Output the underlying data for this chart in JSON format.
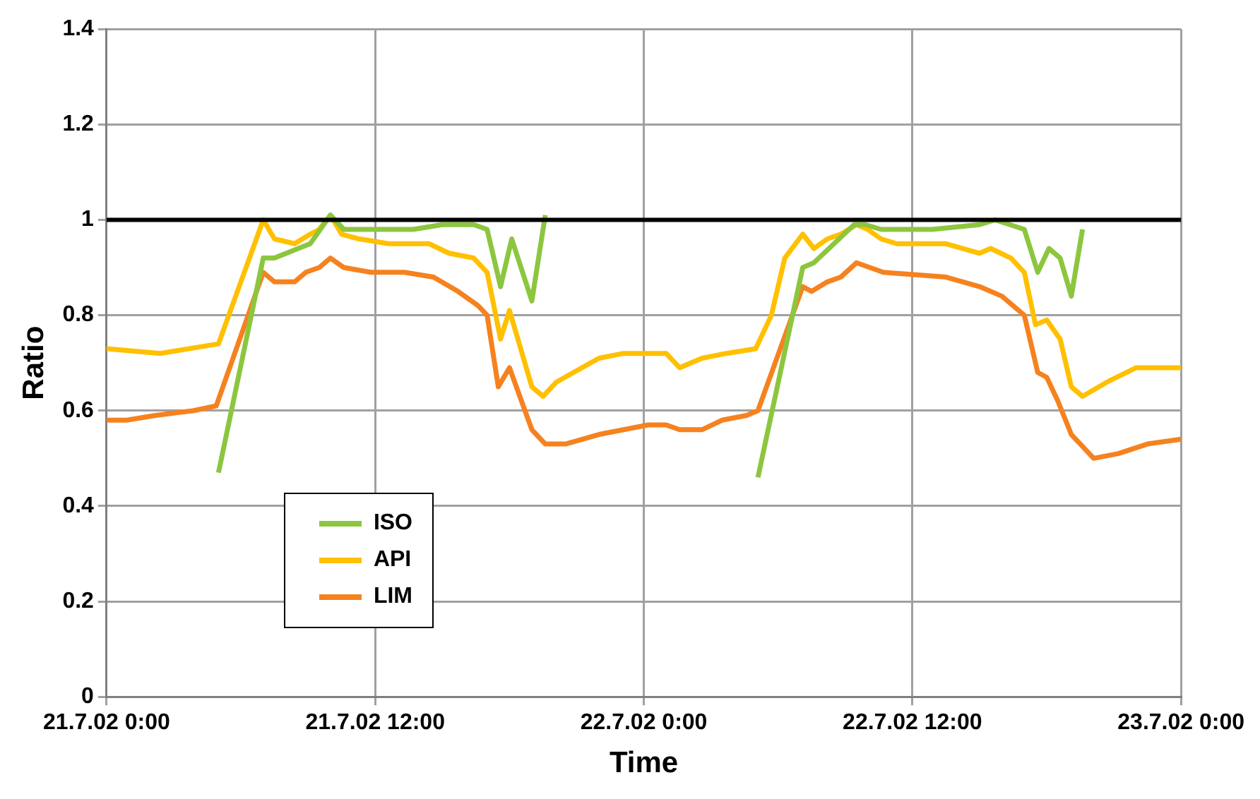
{
  "chart_data": {
    "type": "line",
    "xlabel": "Time",
    "ylabel": "Ratio",
    "xlim": [
      "--07-21T00:00",
      "--07-23T00:00"
    ],
    "xticks": [
      {
        "value": "--07-21T00:00",
        "label": "21.7.02 0:00"
      },
      {
        "value": "--07-21T12:00",
        "label": "21.7.02 12:00"
      },
      {
        "value": "--07-22T00:00",
        "label": "22.7.02 0:00"
      },
      {
        "value": "--07-22T12:00",
        "label": "22.7.02 12:00"
      },
      {
        "value": "--07-23T00:00",
        "label": "23.7.02 0:00"
      }
    ],
    "ylim": [
      0,
      1.4
    ],
    "yticks": [
      0,
      0.2,
      0.4,
      0.6,
      0.8,
      1,
      1.2,
      1.4
    ],
    "grid": true,
    "legend": "bottom left",
    "marker": "none",
    "line_style": "solid",
    "ref_lines": [
      {
        "axis": "y",
        "value": 1,
        "color": "#000000"
      }
    ],
    "series": [
      {
        "name": "ISO",
        "color": "#8cc63f",
        "x": [
          "--07-21T05:00",
          "--07-21T07:00",
          "--07-21T07:30",
          "--07-21T09:06",
          "--07-21T10:00",
          "--07-21T10:36",
          "--07-21T12:36",
          "--07-21T13:42",
          "--07-21T15:00",
          "--07-21T16:24",
          "--07-21T17:00",
          "--07-21T17:36",
          "--07-21T18:06",
          "--07-21T19:00",
          "--07-21T19:36",
          "--07-22T00:00",
          "--07-22T05:06",
          "--07-22T07:06",
          "--07-22T07:36",
          "--07-22T08:30",
          "--07-22T09:24",
          "--07-22T09:54",
          "--07-22T10:36",
          "--07-22T12:54",
          "--07-22T15:00",
          "--07-22T15:42",
          "--07-22T17:00",
          "--07-22T17:36",
          "--07-22T18:06",
          "--07-22T18:36",
          "--07-22T19:06",
          "--07-22T19:36"
        ],
        "values": [
          0.47,
          0.92,
          0.92,
          0.95,
          1.01,
          0.98,
          0.98,
          0.98,
          0.99,
          0.99,
          0.98,
          0.86,
          0.96,
          0.83,
          1.01,
          null,
          0.46,
          0.9,
          0.91,
          0.95,
          0.99,
          0.99,
          0.98,
          0.98,
          0.99,
          1.0,
          0.98,
          0.89,
          0.94,
          0.92,
          0.84,
          0.98
        ]
      },
      {
        "name": "API",
        "color": "#ffc000",
        "x": [
          "--07-21T00:00",
          "--07-21T02:24",
          "--07-21T05:00",
          "--07-21T07:00",
          "--07-21T07:30",
          "--07-21T08:24",
          "--07-21T09:06",
          "--07-21T09:30",
          "--07-21T10:00",
          "--07-21T10:30",
          "--07-21T11:18",
          "--07-21T12:36",
          "--07-21T14:24",
          "--07-21T15:18",
          "--07-21T16:24",
          "--07-21T17:00",
          "--07-21T17:36",
          "--07-21T18:00",
          "--07-21T19:00",
          "--07-21T19:30",
          "--07-21T20:06",
          "--07-21T22:00",
          "--07-21T23:06",
          "--07-22T00:00",
          "--07-22T01:00",
          "--07-22T01:36",
          "--07-22T02:36",
          "--07-22T03:42",
          "--07-22T05:00",
          "--07-22T05:42",
          "--07-22T06:18",
          "--07-22T07:06",
          "--07-22T07:36",
          "--07-22T08:12",
          "--07-22T08:48",
          "--07-22T09:30",
          "--07-22T10:00",
          "--07-22T10:36",
          "--07-22T11:18",
          "--07-22T13:30",
          "--07-22T15:00",
          "--07-22T15:30",
          "--07-22T16:24",
          "--07-22T17:00",
          "--07-22T17:30",
          "--07-22T18:00",
          "--07-22T18:36",
          "--07-22T19:06",
          "--07-22T19:36",
          "--07-22T20:42",
          "--07-22T22:00",
          "--07-22T22:54",
          "--07-23T00:00"
        ],
        "values": [
          0.73,
          0.72,
          0.74,
          1.0,
          0.96,
          0.95,
          0.97,
          0.98,
          1.01,
          0.97,
          0.96,
          0.95,
          0.95,
          0.93,
          0.92,
          0.89,
          0.75,
          0.81,
          0.65,
          0.63,
          0.66,
          0.71,
          0.72,
          0.72,
          0.72,
          0.69,
          0.71,
          0.72,
          0.73,
          0.8,
          0.92,
          0.97,
          0.94,
          0.96,
          0.97,
          0.99,
          0.98,
          0.96,
          0.95,
          0.95,
          0.93,
          0.94,
          0.92,
          0.89,
          0.78,
          0.79,
          0.75,
          0.65,
          0.63,
          0.66,
          0.69,
          0.69,
          0.69
        ]
      },
      {
        "name": "LIM",
        "color": "#f5821f",
        "x": [
          "--07-21T00:00",
          "--07-21T00:54",
          "--07-21T02:12",
          "--07-21T03:54",
          "--07-21T04:54",
          "--07-21T07:00",
          "--07-21T07:30",
          "--07-21T08:24",
          "--07-21T08:54",
          "--07-21T09:30",
          "--07-21T10:00",
          "--07-21T10:36",
          "--07-21T11:48",
          "--07-21T13:18",
          "--07-21T14:36",
          "--07-21T15:42",
          "--07-21T16:36",
          "--07-21T17:00",
          "--07-21T17:30",
          "--07-21T18:00",
          "--07-21T19:00",
          "--07-21T19:36",
          "--07-21T20:30",
          "--07-21T22:00",
          "--07-22T00:12",
          "--07-22T01:00",
          "--07-22T01:36",
          "--07-22T02:36",
          "--07-22T03:30",
          "--07-22T04:36",
          "--07-22T05:06",
          "--07-22T07:06",
          "--07-22T07:30",
          "--07-22T08:12",
          "--07-22T08:48",
          "--07-22T09:30",
          "--07-22T10:42",
          "--07-22T13:30",
          "--07-22T15:00",
          "--07-22T16:00",
          "--07-22T17:00",
          "--07-22T17:36",
          "--07-22T18:00",
          "--07-22T18:30",
          "--07-22T19:06",
          "--07-22T20:06",
          "--07-22T21:12",
          "--07-22T22:30",
          "--07-23T00:00"
        ],
        "values": [
          0.58,
          0.58,
          0.59,
          0.6,
          0.61,
          0.89,
          0.87,
          0.87,
          0.89,
          0.9,
          0.92,
          0.9,
          0.89,
          0.89,
          0.88,
          0.85,
          0.82,
          0.8,
          0.65,
          0.69,
          0.56,
          0.53,
          0.53,
          0.55,
          0.57,
          0.57,
          0.56,
          0.56,
          0.58,
          0.59,
          0.6,
          0.86,
          0.85,
          0.87,
          0.88,
          0.91,
          0.89,
          0.88,
          0.86,
          0.84,
          0.8,
          0.68,
          0.67,
          0.62,
          0.55,
          0.5,
          0.51,
          0.53,
          0.54
        ]
      }
    ]
  }
}
